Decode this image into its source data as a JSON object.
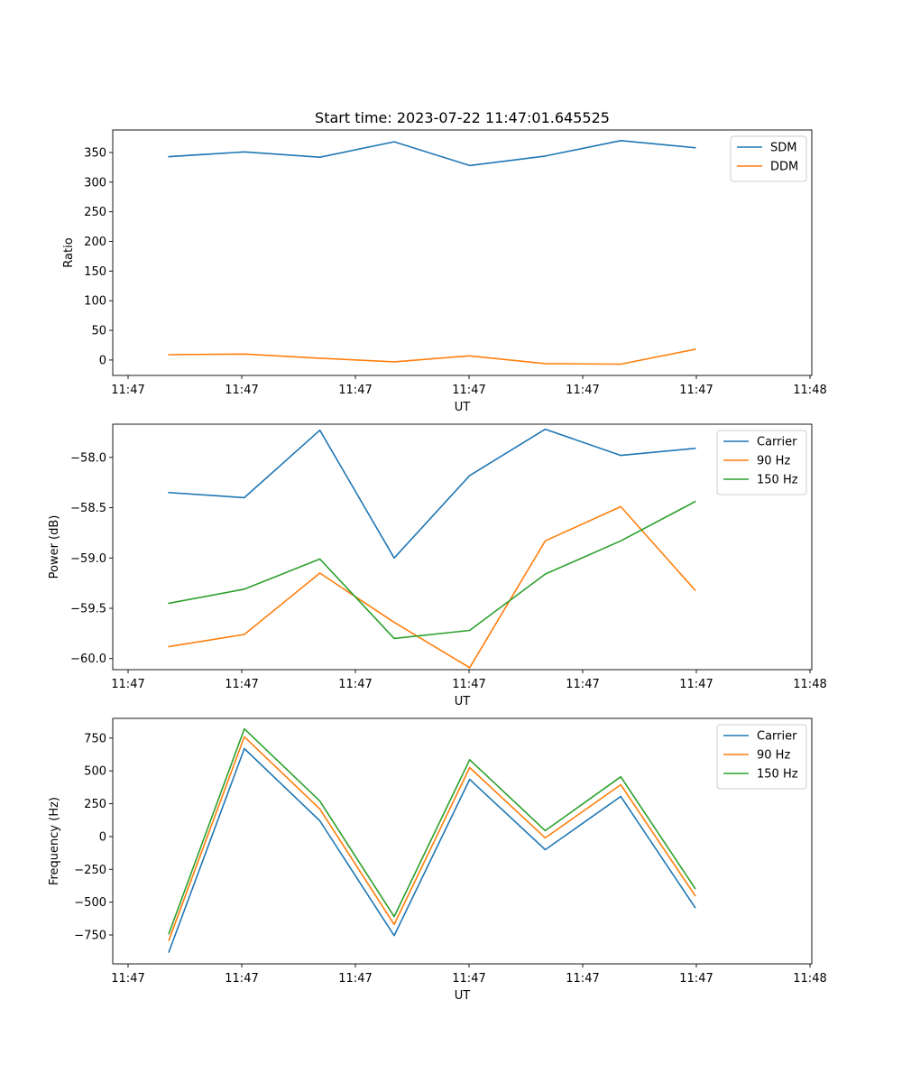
{
  "figure": {
    "title": "Start time: 2023-07-22 11:47:01.645525",
    "colors": {
      "blue": "#1f77b4",
      "orange": "#ff7f0e",
      "green": "#2ca02c"
    }
  },
  "chart_data": [
    {
      "type": "line",
      "title": "Start time: 2023-07-22 11:47:01.645525",
      "xlabel": "UT",
      "ylabel": "Ratio",
      "xticks": [
        "11:47",
        "11:47",
        "11:47",
        "11:47",
        "11:47",
        "11:47",
        "11:48"
      ],
      "xlim": [
        0,
        6.11
      ],
      "x": [
        0.49,
        1.15,
        1.81,
        2.46,
        3.12,
        3.78,
        4.44,
        5.09
      ],
      "ylim": [
        -26,
        388
      ],
      "yticks": [
        0,
        50,
        100,
        150,
        200,
        250,
        300,
        350
      ],
      "legend_loc": "upper right",
      "series": [
        {
          "name": "SDM",
          "color": "#1f77b4",
          "values": [
            343,
            351,
            342,
            368,
            328,
            344,
            370,
            358
          ]
        },
        {
          "name": "DDM",
          "color": "#ff7f0e",
          "values": [
            9,
            10,
            3,
            -3,
            7,
            -6,
            -7,
            18
          ]
        }
      ]
    },
    {
      "type": "line",
      "title": "",
      "xlabel": "UT",
      "ylabel": "Power (dB)",
      "xticks": [
        "11:47",
        "11:47",
        "11:47",
        "11:47",
        "11:47",
        "11:47",
        "11:48"
      ],
      "xlim": [
        0,
        6.11
      ],
      "x": [
        0.49,
        1.15,
        1.81,
        2.46,
        3.12,
        3.78,
        4.44,
        5.09
      ],
      "ylim": [
        -60.11,
        -57.67
      ],
      "yticks": [
        -60.0,
        -59.5,
        -59.0,
        -58.5,
        -58.0
      ],
      "ytick_labels": [
        "−60.0",
        "−59.5",
        "−59.0",
        "−58.5",
        "−58.0"
      ],
      "legend_loc": "upper right",
      "series": [
        {
          "name": "Carrier",
          "color": "#1f77b4",
          "values": [
            -58.35,
            -58.4,
            -57.73,
            -59.0,
            -58.18,
            -57.72,
            -57.98,
            -57.91
          ]
        },
        {
          "name": "90 Hz",
          "color": "#ff7f0e",
          "values": [
            -59.88,
            -59.76,
            -59.15,
            -59.64,
            -60.09,
            -58.83,
            -58.49,
            -59.32
          ]
        },
        {
          "name": "150 Hz",
          "color": "#2ca02c",
          "values": [
            -59.45,
            -59.31,
            -59.01,
            -59.8,
            -59.72,
            -59.16,
            -58.83,
            -58.44
          ]
        }
      ]
    },
    {
      "type": "line",
      "title": "",
      "xlabel": "UT",
      "ylabel": "Frequency (Hz)",
      "xticks": [
        "11:47",
        "11:47",
        "11:47",
        "11:47",
        "11:47",
        "11:47",
        "11:48"
      ],
      "xlim": [
        0,
        6.11
      ],
      "x": [
        0.49,
        1.15,
        1.81,
        2.46,
        3.12,
        3.78,
        4.44,
        5.09
      ],
      "ylim": [
        -970,
        900
      ],
      "yticks": [
        -750,
        -500,
        -250,
        0,
        250,
        500,
        750
      ],
      "ytick_labels": [
        "−750",
        "−500",
        "−250",
        "0",
        "250",
        "500",
        "750"
      ],
      "legend_loc": "upper right",
      "series": [
        {
          "name": "Carrier",
          "color": "#1f77b4",
          "values": [
            -880,
            670,
            120,
            -755,
            435,
            -100,
            305,
            -540
          ]
        },
        {
          "name": "90 Hz",
          "color": "#ff7f0e",
          "values": [
            -790,
            760,
            210,
            -670,
            525,
            -10,
            395,
            -450
          ]
        },
        {
          "name": "150 Hz",
          "color": "#2ca02c",
          "values": [
            -740,
            820,
            270,
            -610,
            585,
            45,
            455,
            -395
          ]
        }
      ]
    }
  ]
}
